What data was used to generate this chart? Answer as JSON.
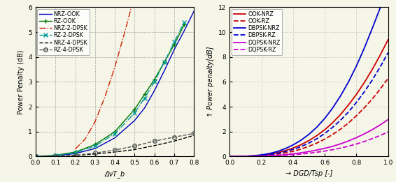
{
  "left": {
    "xlabel": "ΔνT_b",
    "ylabel": "Power Penalty (dB)",
    "xlim": [
      0,
      0.8
    ],
    "ylim": [
      0,
      6
    ],
    "xticks": [
      0.0,
      0.1,
      0.2,
      0.3,
      0.4,
      0.5,
      0.6,
      0.7,
      0.8
    ],
    "yticks": [
      0,
      1,
      2,
      3,
      4,
      5,
      6
    ],
    "series": [
      {
        "label": "NRZ-OOK",
        "color": "#0000bb",
        "ls": "-",
        "marker": null,
        "lw": 1.0,
        "x": [
          0.0,
          0.1,
          0.2,
          0.3,
          0.4,
          0.5,
          0.55,
          0.6,
          0.65,
          0.7,
          0.75,
          0.8
        ],
        "y": [
          0.0,
          0.03,
          0.12,
          0.32,
          0.75,
          1.45,
          1.95,
          2.65,
          3.45,
          4.3,
          5.05,
          5.85
        ]
      },
      {
        "label": "RZ-OOK",
        "color": "#007700",
        "ls": "-",
        "marker": "+",
        "lw": 1.0,
        "ms": 5,
        "x": [
          0.0,
          0.1,
          0.2,
          0.3,
          0.4,
          0.5,
          0.55,
          0.6,
          0.65,
          0.7,
          0.75
        ],
        "y": [
          0.0,
          0.05,
          0.18,
          0.48,
          1.0,
          1.9,
          2.5,
          3.1,
          3.8,
          4.5,
          5.3
        ]
      },
      {
        "label": "NRZ-2-DPSK",
        "color": "#cc2200",
        "ls": "-.",
        "marker": null,
        "lw": 1.0,
        "x": [
          0.2,
          0.25,
          0.3,
          0.35,
          0.4,
          0.45,
          0.5,
          0.52,
          0.54
        ],
        "y": [
          0.3,
          0.7,
          1.4,
          2.4,
          3.6,
          5.0,
          6.5,
          7.2,
          7.9
        ]
      },
      {
        "label": "RZ-2-DPSK",
        "color": "#009999",
        "ls": "-.",
        "marker": "x",
        "lw": 1.0,
        "ms": 5,
        "x": [
          0.0,
          0.1,
          0.2,
          0.3,
          0.4,
          0.5,
          0.55,
          0.6,
          0.65,
          0.7,
          0.75
        ],
        "y": [
          0.0,
          0.04,
          0.15,
          0.42,
          0.92,
          1.75,
          2.35,
          3.0,
          3.8,
          4.6,
          5.4
        ]
      },
      {
        "label": "NRZ-4-DPSK",
        "color": "#000000",
        "ls": "--",
        "marker": null,
        "lw": 1.0,
        "x": [
          0.0,
          0.1,
          0.2,
          0.3,
          0.4,
          0.5,
          0.6,
          0.7,
          0.8
        ],
        "y": [
          0.0,
          0.01,
          0.04,
          0.1,
          0.18,
          0.28,
          0.44,
          0.62,
          0.85
        ]
      },
      {
        "label": "RZ-4-DPSK",
        "color": "#555555",
        "ls": "--",
        "marker": "o",
        "lw": 1.0,
        "ms": 4,
        "x": [
          0.0,
          0.1,
          0.2,
          0.3,
          0.4,
          0.5,
          0.6,
          0.7,
          0.8
        ],
        "y": [
          0.0,
          0.01,
          0.05,
          0.14,
          0.26,
          0.42,
          0.62,
          0.78,
          0.93
        ]
      }
    ]
  },
  "right": {
    "xlabel": "→ DGD/Tsp [-]",
    "ylabel": "↑ Power penalty[dB]",
    "xlim": [
      0,
      1.0
    ],
    "ylim": [
      0,
      12
    ],
    "xticks": [
      0.0,
      0.2,
      0.4,
      0.6,
      0.8,
      1.0
    ],
    "yticks": [
      0,
      2,
      4,
      6,
      8,
      10,
      12
    ],
    "series": [
      {
        "label": "OOK-NRZ",
        "color": "#cc0000",
        "ls": "-",
        "lw": 1.3,
        "x": [
          0.0,
          0.05,
          0.1,
          0.15,
          0.2,
          0.25,
          0.3,
          0.35,
          0.4,
          0.45,
          0.5,
          0.55,
          0.6,
          0.65,
          0.7,
          0.75,
          0.8,
          0.85,
          0.9,
          0.95,
          1.0
        ],
        "y": [
          0.0,
          0.005,
          0.02,
          0.05,
          0.1,
          0.18,
          0.3,
          0.47,
          0.68,
          0.95,
          1.28,
          1.68,
          2.15,
          2.72,
          3.38,
          4.15,
          5.0,
          5.95,
          7.0,
          8.15,
          9.4
        ]
      },
      {
        "label": "OOK-RZ",
        "color": "#cc0000",
        "ls": "--",
        "lw": 1.3,
        "x": [
          0.0,
          0.05,
          0.1,
          0.15,
          0.2,
          0.25,
          0.3,
          0.35,
          0.4,
          0.45,
          0.5,
          0.55,
          0.6,
          0.65,
          0.7,
          0.75,
          0.8,
          0.85,
          0.9,
          0.95,
          1.0
        ],
        "y": [
          0.0,
          0.003,
          0.012,
          0.032,
          0.065,
          0.115,
          0.19,
          0.29,
          0.42,
          0.6,
          0.82,
          1.08,
          1.4,
          1.77,
          2.2,
          2.7,
          3.28,
          3.92,
          4.62,
          5.42,
          6.28
        ]
      },
      {
        "label": "DBPSK-NRZ",
        "color": "#0000cc",
        "ls": "-",
        "lw": 1.3,
        "x": [
          0.0,
          0.05,
          0.1,
          0.15,
          0.2,
          0.25,
          0.3,
          0.35,
          0.4,
          0.45,
          0.5,
          0.55,
          0.6,
          0.65,
          0.7,
          0.75,
          0.8,
          0.85,
          0.9,
          0.95,
          1.0
        ],
        "y": [
          0.0,
          0.006,
          0.025,
          0.065,
          0.13,
          0.24,
          0.4,
          0.63,
          0.93,
          1.31,
          1.78,
          2.36,
          3.06,
          3.9,
          4.88,
          6.0,
          7.28,
          8.72,
          10.3,
          11.95,
          13.7
        ]
      },
      {
        "label": "DBPSK-RZ",
        "color": "#0000cc",
        "ls": "--",
        "lw": 1.3,
        "x": [
          0.0,
          0.05,
          0.1,
          0.15,
          0.2,
          0.25,
          0.3,
          0.35,
          0.4,
          0.45,
          0.5,
          0.55,
          0.6,
          0.65,
          0.7,
          0.75,
          0.8,
          0.85,
          0.9,
          0.95,
          1.0
        ],
        "y": [
          0.0,
          0.004,
          0.016,
          0.042,
          0.085,
          0.15,
          0.25,
          0.39,
          0.57,
          0.8,
          1.08,
          1.43,
          1.85,
          2.35,
          2.92,
          3.58,
          4.35,
          5.2,
          6.15,
          7.2,
          8.35
        ]
      },
      {
        "label": "DQPSK-NRZ",
        "color": "#cc00cc",
        "ls": "-",
        "lw": 1.3,
        "x": [
          0.0,
          0.05,
          0.1,
          0.15,
          0.2,
          0.25,
          0.3,
          0.35,
          0.4,
          0.45,
          0.5,
          0.55,
          0.6,
          0.65,
          0.7,
          0.75,
          0.8,
          0.85,
          0.9,
          0.95,
          1.0
        ],
        "y": [
          0.0,
          0.001,
          0.006,
          0.016,
          0.033,
          0.058,
          0.095,
          0.148,
          0.215,
          0.298,
          0.4,
          0.52,
          0.66,
          0.82,
          1.02,
          1.25,
          1.52,
          1.82,
          2.16,
          2.54,
          2.97
        ]
      },
      {
        "label": "DQPSK-RZ",
        "color": "#cc00cc",
        "ls": "--",
        "lw": 1.3,
        "x": [
          0.0,
          0.05,
          0.1,
          0.15,
          0.2,
          0.25,
          0.3,
          0.35,
          0.4,
          0.45,
          0.5,
          0.55,
          0.6,
          0.65,
          0.7,
          0.75,
          0.8,
          0.85,
          0.9,
          0.95,
          1.0
        ],
        "y": [
          0.0,
          0.001,
          0.004,
          0.011,
          0.022,
          0.038,
          0.063,
          0.098,
          0.143,
          0.198,
          0.265,
          0.345,
          0.44,
          0.55,
          0.68,
          0.83,
          1.01,
          1.21,
          1.44,
          1.69,
          1.98
        ]
      }
    ]
  },
  "bg_color": "#f5f5e8",
  "grid_color_left": "#888888",
  "grid_color_right": "#aaaaaa",
  "fig_width": 5.66,
  "fig_height": 2.61,
  "dpi": 100
}
